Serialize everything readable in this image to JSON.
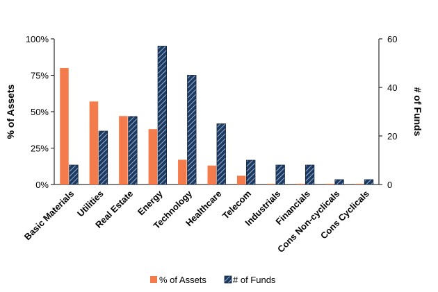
{
  "chart_data": {
    "type": "bar",
    "categories": [
      "Basic Materials",
      "Utilities",
      "Real Estate",
      "Energy",
      "Technology",
      "Healthcare",
      "Telecom",
      "Industrials",
      "Financials",
      "Cons Non-cyclicals",
      "Cons Cyclicals"
    ],
    "series": [
      {
        "name": "% of Assets",
        "axis": "left",
        "color": "#f47c4c",
        "values": [
          0.8,
          0.57,
          0.47,
          0.38,
          0.17,
          0.13,
          0.06,
          0.005,
          0.005,
          0.005,
          0.005
        ]
      },
      {
        "name": "# of Funds",
        "axis": "right",
        "color": "#1f3a5c",
        "pattern": "diagonal-hatch",
        "values": [
          8,
          22,
          28,
          57,
          45,
          25,
          10,
          8,
          8,
          2,
          2
        ]
      }
    ],
    "title": "",
    "xlabel": "",
    "ylabel": "% of Assets",
    "ylabel_right": "# of Funds",
    "ylim": [
      0,
      1
    ],
    "ylim_right": [
      0,
      60
    ],
    "yticks": [
      "0%",
      "25%",
      "50%",
      "75%",
      "100%"
    ],
    "yticks_right": [
      "0",
      "20",
      "40",
      "60"
    ],
    "grid": false,
    "legend": "bottom"
  }
}
